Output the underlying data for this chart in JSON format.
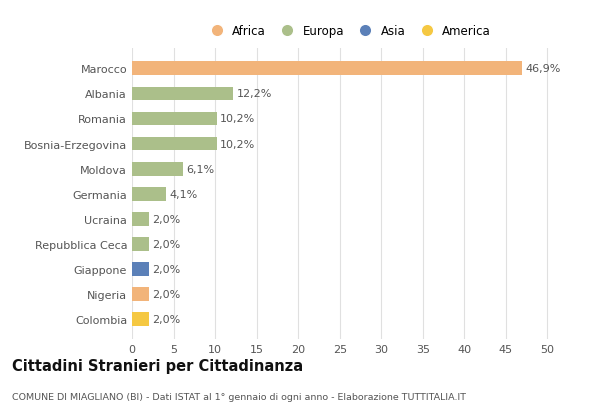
{
  "countries": [
    "Marocco",
    "Albania",
    "Romania",
    "Bosnia-Erzegovina",
    "Moldova",
    "Germania",
    "Ucraina",
    "Repubblica Ceca",
    "Giappone",
    "Nigeria",
    "Colombia"
  ],
  "values": [
    46.9,
    12.2,
    10.2,
    10.2,
    6.1,
    4.1,
    2.0,
    2.0,
    2.0,
    2.0,
    2.0
  ],
  "labels": [
    "46,9%",
    "12,2%",
    "10,2%",
    "10,2%",
    "6,1%",
    "4,1%",
    "2,0%",
    "2,0%",
    "2,0%",
    "2,0%",
    "2,0%"
  ],
  "colors": [
    "#F2B47A",
    "#ABBF8A",
    "#ABBF8A",
    "#ABBF8A",
    "#ABBF8A",
    "#ABBF8A",
    "#ABBF8A",
    "#ABBF8A",
    "#5B80B8",
    "#F2B47A",
    "#F5C842"
  ],
  "legend_labels": [
    "Africa",
    "Europa",
    "Asia",
    "America"
  ],
  "legend_colors": [
    "#F2B47A",
    "#ABBF8A",
    "#5B80B8",
    "#F5C842"
  ],
  "title": "Cittadini Stranieri per Cittadinanza",
  "subtitle": "COMUNE DI MIAGLIANO (BI) - Dati ISTAT al 1° gennaio di ogni anno - Elaborazione TUTTITALIA.IT",
  "xlim": [
    0,
    52
  ],
  "xticks": [
    0,
    5,
    10,
    15,
    20,
    25,
    30,
    35,
    40,
    45,
    50
  ],
  "background_color": "#ffffff",
  "grid_color": "#e0e0e0"
}
